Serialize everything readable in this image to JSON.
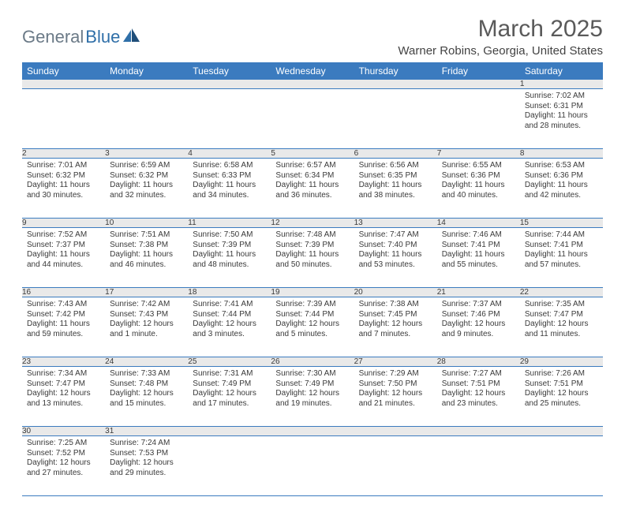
{
  "brand": {
    "part1": "General",
    "part2": "Blue"
  },
  "title": "March 2025",
  "location": "Warner Robins, Georgia, United States",
  "colors": {
    "header_bg": "#3b7bbf",
    "header_text": "#ffffff",
    "daynum_bg": "#e9e9e9",
    "border": "#3b7bbf",
    "brand_gray": "#6b7a87",
    "brand_blue": "#2f6fa8"
  },
  "weekdays": [
    "Sunday",
    "Monday",
    "Tuesday",
    "Wednesday",
    "Thursday",
    "Friday",
    "Saturday"
  ],
  "weeks": [
    [
      null,
      null,
      null,
      null,
      null,
      null,
      {
        "n": "1",
        "sr": "Sunrise: 7:02 AM",
        "ss": "Sunset: 6:31 PM",
        "d1": "Daylight: 11 hours",
        "d2": "and 28 minutes."
      }
    ],
    [
      {
        "n": "2",
        "sr": "Sunrise: 7:01 AM",
        "ss": "Sunset: 6:32 PM",
        "d1": "Daylight: 11 hours",
        "d2": "and 30 minutes."
      },
      {
        "n": "3",
        "sr": "Sunrise: 6:59 AM",
        "ss": "Sunset: 6:32 PM",
        "d1": "Daylight: 11 hours",
        "d2": "and 32 minutes."
      },
      {
        "n": "4",
        "sr": "Sunrise: 6:58 AM",
        "ss": "Sunset: 6:33 PM",
        "d1": "Daylight: 11 hours",
        "d2": "and 34 minutes."
      },
      {
        "n": "5",
        "sr": "Sunrise: 6:57 AM",
        "ss": "Sunset: 6:34 PM",
        "d1": "Daylight: 11 hours",
        "d2": "and 36 minutes."
      },
      {
        "n": "6",
        "sr": "Sunrise: 6:56 AM",
        "ss": "Sunset: 6:35 PM",
        "d1": "Daylight: 11 hours",
        "d2": "and 38 minutes."
      },
      {
        "n": "7",
        "sr": "Sunrise: 6:55 AM",
        "ss": "Sunset: 6:36 PM",
        "d1": "Daylight: 11 hours",
        "d2": "and 40 minutes."
      },
      {
        "n": "8",
        "sr": "Sunrise: 6:53 AM",
        "ss": "Sunset: 6:36 PM",
        "d1": "Daylight: 11 hours",
        "d2": "and 42 minutes."
      }
    ],
    [
      {
        "n": "9",
        "sr": "Sunrise: 7:52 AM",
        "ss": "Sunset: 7:37 PM",
        "d1": "Daylight: 11 hours",
        "d2": "and 44 minutes."
      },
      {
        "n": "10",
        "sr": "Sunrise: 7:51 AM",
        "ss": "Sunset: 7:38 PM",
        "d1": "Daylight: 11 hours",
        "d2": "and 46 minutes."
      },
      {
        "n": "11",
        "sr": "Sunrise: 7:50 AM",
        "ss": "Sunset: 7:39 PM",
        "d1": "Daylight: 11 hours",
        "d2": "and 48 minutes."
      },
      {
        "n": "12",
        "sr": "Sunrise: 7:48 AM",
        "ss": "Sunset: 7:39 PM",
        "d1": "Daylight: 11 hours",
        "d2": "and 50 minutes."
      },
      {
        "n": "13",
        "sr": "Sunrise: 7:47 AM",
        "ss": "Sunset: 7:40 PM",
        "d1": "Daylight: 11 hours",
        "d2": "and 53 minutes."
      },
      {
        "n": "14",
        "sr": "Sunrise: 7:46 AM",
        "ss": "Sunset: 7:41 PM",
        "d1": "Daylight: 11 hours",
        "d2": "and 55 minutes."
      },
      {
        "n": "15",
        "sr": "Sunrise: 7:44 AM",
        "ss": "Sunset: 7:41 PM",
        "d1": "Daylight: 11 hours",
        "d2": "and 57 minutes."
      }
    ],
    [
      {
        "n": "16",
        "sr": "Sunrise: 7:43 AM",
        "ss": "Sunset: 7:42 PM",
        "d1": "Daylight: 11 hours",
        "d2": "and 59 minutes."
      },
      {
        "n": "17",
        "sr": "Sunrise: 7:42 AM",
        "ss": "Sunset: 7:43 PM",
        "d1": "Daylight: 12 hours",
        "d2": "and 1 minute."
      },
      {
        "n": "18",
        "sr": "Sunrise: 7:41 AM",
        "ss": "Sunset: 7:44 PM",
        "d1": "Daylight: 12 hours",
        "d2": "and 3 minutes."
      },
      {
        "n": "19",
        "sr": "Sunrise: 7:39 AM",
        "ss": "Sunset: 7:44 PM",
        "d1": "Daylight: 12 hours",
        "d2": "and 5 minutes."
      },
      {
        "n": "20",
        "sr": "Sunrise: 7:38 AM",
        "ss": "Sunset: 7:45 PM",
        "d1": "Daylight: 12 hours",
        "d2": "and 7 minutes."
      },
      {
        "n": "21",
        "sr": "Sunrise: 7:37 AM",
        "ss": "Sunset: 7:46 PM",
        "d1": "Daylight: 12 hours",
        "d2": "and 9 minutes."
      },
      {
        "n": "22",
        "sr": "Sunrise: 7:35 AM",
        "ss": "Sunset: 7:47 PM",
        "d1": "Daylight: 12 hours",
        "d2": "and 11 minutes."
      }
    ],
    [
      {
        "n": "23",
        "sr": "Sunrise: 7:34 AM",
        "ss": "Sunset: 7:47 PM",
        "d1": "Daylight: 12 hours",
        "d2": "and 13 minutes."
      },
      {
        "n": "24",
        "sr": "Sunrise: 7:33 AM",
        "ss": "Sunset: 7:48 PM",
        "d1": "Daylight: 12 hours",
        "d2": "and 15 minutes."
      },
      {
        "n": "25",
        "sr": "Sunrise: 7:31 AM",
        "ss": "Sunset: 7:49 PM",
        "d1": "Daylight: 12 hours",
        "d2": "and 17 minutes."
      },
      {
        "n": "26",
        "sr": "Sunrise: 7:30 AM",
        "ss": "Sunset: 7:49 PM",
        "d1": "Daylight: 12 hours",
        "d2": "and 19 minutes."
      },
      {
        "n": "27",
        "sr": "Sunrise: 7:29 AM",
        "ss": "Sunset: 7:50 PM",
        "d1": "Daylight: 12 hours",
        "d2": "and 21 minutes."
      },
      {
        "n": "28",
        "sr": "Sunrise: 7:27 AM",
        "ss": "Sunset: 7:51 PM",
        "d1": "Daylight: 12 hours",
        "d2": "and 23 minutes."
      },
      {
        "n": "29",
        "sr": "Sunrise: 7:26 AM",
        "ss": "Sunset: 7:51 PM",
        "d1": "Daylight: 12 hours",
        "d2": "and 25 minutes."
      }
    ],
    [
      {
        "n": "30",
        "sr": "Sunrise: 7:25 AM",
        "ss": "Sunset: 7:52 PM",
        "d1": "Daylight: 12 hours",
        "d2": "and 27 minutes."
      },
      {
        "n": "31",
        "sr": "Sunrise: 7:24 AM",
        "ss": "Sunset: 7:53 PM",
        "d1": "Daylight: 12 hours",
        "d2": "and 29 minutes."
      },
      null,
      null,
      null,
      null,
      null
    ]
  ]
}
